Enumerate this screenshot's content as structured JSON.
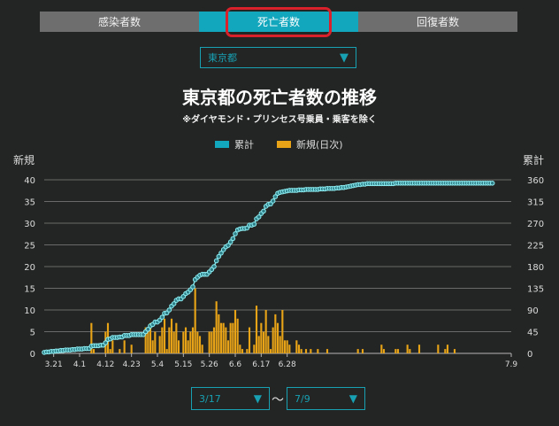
{
  "tabs": [
    {
      "label": "感染者数",
      "active": false
    },
    {
      "label": "死亡者数",
      "active": true
    },
    {
      "label": "回復者数",
      "active": false
    }
  ],
  "region_select": {
    "value": "東京都",
    "icon": "triangle-down-icon"
  },
  "title": "東京都の死亡者数の推移",
  "note": "※ダイヤモンド・プリンセス号乗員・乗客を除く",
  "legend": {
    "cumulative": "累計",
    "daily": "新規(日次)"
  },
  "axis_left_title": "新規",
  "axis_right_title": "累計",
  "date_range": {
    "start": "3/17",
    "end": "7/9",
    "separator": "〜"
  },
  "colors": {
    "accent": "#13a7bd",
    "bar": "#e8a317",
    "line": "#7de0e6",
    "active_tab": "#13a7bd",
    "highlight": "#d9212b"
  },
  "chart_data": {
    "type": "bar",
    "start_date": "3/17",
    "end_date": "7/9",
    "x_tick_labels": [
      "3.21",
      "4.1",
      "4.12",
      "4.23",
      "5.4",
      "5.15",
      "5.26",
      "6.6",
      "6.17",
      "6.28",
      "7.9"
    ],
    "y_left_ticks": [
      "0",
      "5",
      "10",
      "15",
      "20",
      "25",
      "30",
      "35",
      "40"
    ],
    "y_right_ticks": [
      "0",
      "45",
      "90",
      "135",
      "180",
      "225",
      "270",
      "315",
      "360"
    ],
    "ylim_left": [
      0,
      40
    ],
    "ylim_right": [
      0,
      360
    ],
    "grid": true,
    "legend_position": "top-center",
    "series": [
      {
        "name": "新規(日次)",
        "type": "bar",
        "axis": "left",
        "values": [
          0,
          0,
          0,
          0,
          0,
          0,
          0,
          0,
          0,
          0,
          0,
          0,
          0,
          0,
          0,
          0,
          0,
          0,
          0,
          0,
          7,
          1,
          0,
          0,
          0,
          0,
          5,
          7,
          1,
          3,
          0,
          0,
          1,
          0,
          3,
          0,
          0,
          2,
          0,
          0,
          0,
          0,
          0,
          6,
          5,
          7,
          3,
          5,
          0,
          4,
          6,
          8,
          1,
          6,
          8,
          5,
          7,
          3,
          0,
          5,
          6,
          3,
          5,
          6,
          15,
          5,
          4,
          2,
          0,
          0,
          5,
          5,
          6,
          12,
          9,
          7,
          7,
          6,
          3,
          7,
          7,
          10,
          8,
          2,
          1,
          0,
          1,
          6,
          0,
          2,
          11,
          4,
          7,
          5,
          10,
          4,
          1,
          6,
          9,
          7,
          4,
          10,
          3,
          3,
          2,
          0,
          0,
          3,
          2,
          1,
          0,
          1,
          0,
          1,
          0,
          0,
          1,
          0,
          0,
          0,
          1,
          0,
          0,
          0,
          0,
          0,
          0,
          0,
          0,
          0,
          0,
          0,
          0,
          1,
          0,
          1,
          0,
          0,
          0,
          0,
          0,
          0,
          0,
          2,
          1,
          0,
          0,
          0,
          0,
          1,
          1,
          0,
          0,
          0,
          2,
          1,
          0,
          0,
          0,
          2,
          0,
          0,
          0,
          0,
          0,
          0,
          0,
          2,
          0,
          0,
          1,
          2,
          0,
          0,
          1,
          0,
          0,
          0,
          0,
          0,
          0,
          0,
          0,
          0,
          0,
          0,
          0,
          0,
          0,
          0,
          0,
          0,
          0,
          0,
          0,
          0,
          0,
          0,
          0
        ]
      },
      {
        "name": "累計",
        "type": "line",
        "axis": "right",
        "values": [
          2,
          3,
          3,
          4,
          4,
          5,
          5,
          6,
          6,
          7,
          7,
          7,
          8,
          8,
          9,
          9,
          9,
          10,
          10,
          10,
          15,
          16,
          16,
          16,
          17,
          17,
          22,
          29,
          30,
          33,
          33,
          33,
          34,
          34,
          37,
          37,
          37,
          39,
          39,
          39,
          39,
          39,
          39,
          45,
          50,
          57,
          60,
          65,
          65,
          69,
          75,
          83,
          84,
          90,
          98,
          103,
          110,
          113,
          113,
          118,
          124,
          127,
          132,
          138,
          153,
          158,
          162,
          164,
          164,
          164,
          169,
          174,
          180,
          192,
          201,
          208,
          215,
          221,
          224,
          231,
          238,
          248,
          256,
          258,
          259,
          259,
          260,
          266,
          266,
          268,
          279,
          283,
          290,
          295,
          305,
          309,
          310,
          316,
          325,
          332,
          334,
          335,
          336,
          337,
          338,
          338,
          338,
          338,
          339,
          339,
          339,
          340,
          340,
          340,
          340,
          340,
          340,
          341,
          341,
          341,
          342,
          342,
          342,
          342,
          343,
          343,
          344,
          344,
          345,
          346,
          347,
          348,
          349,
          350,
          350,
          351,
          351,
          352,
          352,
          352,
          352,
          352,
          352,
          352,
          352,
          352,
          352,
          352,
          352,
          353,
          353,
          353,
          353,
          353,
          353,
          353,
          353,
          353,
          353,
          353,
          353,
          353,
          353,
          353,
          353,
          353,
          353,
          353,
          353,
          353,
          353,
          353,
          353,
          353,
          353,
          353,
          353,
          353,
          353,
          353,
          353,
          353,
          353,
          353,
          353,
          353,
          353,
          353,
          353,
          353,
          353
        ]
      }
    ]
  }
}
